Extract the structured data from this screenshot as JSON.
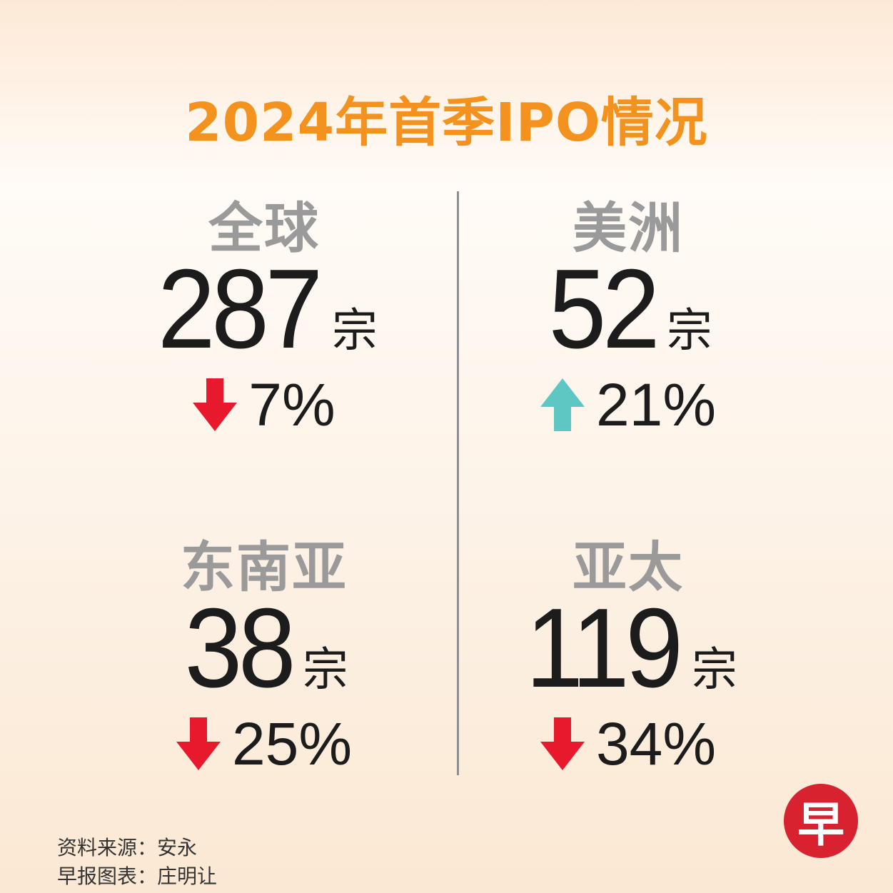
{
  "title": "2024年首季IPO情况",
  "quadrants": [
    {
      "region": "全球",
      "count": "287",
      "unit": "宗",
      "direction": "down",
      "change": "7%"
    },
    {
      "region": "美洲",
      "count": "52",
      "unit": "宗",
      "direction": "up",
      "change": "21%"
    },
    {
      "region": "东南亚",
      "count": "38",
      "unit": "宗",
      "direction": "down",
      "change": "25%"
    },
    {
      "region": "亚太",
      "count": "119",
      "unit": "宗",
      "direction": "down",
      "change": "34%"
    }
  ],
  "source_line": "资料来源：安永",
  "credit_line": "早报图表：庄明让",
  "logo_text": "早",
  "colors": {
    "title": "#f3921f",
    "region": "#9a9a9a",
    "down_arrow": "#e8192c",
    "up_arrow": "#5ec7c4",
    "logo": "#d8222f"
  },
  "icons": {
    "down": "arrow-down-icon",
    "up": "arrow-up-icon"
  }
}
